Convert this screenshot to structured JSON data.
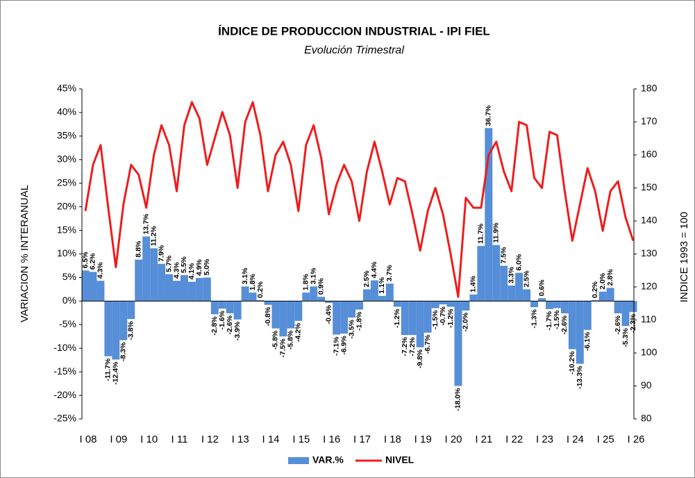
{
  "chart_data": {
    "type": "bar_line",
    "title": "ÍNDICE DE PRODUCCION INDUSTRIAL - IPI FIEL",
    "subtitle": "Evolución Trimestral",
    "y_label": "VARIACION % INTERANUAL",
    "y2_label": "INDICE 1993 = 100",
    "categories": [
      "I 08",
      null,
      null,
      null,
      "I 09",
      null,
      null,
      null,
      "I 10",
      null,
      null,
      null,
      "I 11",
      null,
      null,
      null,
      "I 12",
      null,
      null,
      null,
      "I 13",
      null,
      null,
      null,
      "I 14",
      null,
      null,
      null,
      "I 15",
      null,
      null,
      null,
      "I 16",
      null,
      null,
      null,
      "I 17",
      null,
      null,
      null,
      "I 18",
      null,
      null,
      null,
      "I 19",
      null,
      null,
      null,
      "I 20",
      null,
      null,
      null,
      "I 21",
      null,
      null,
      null,
      "I 22",
      null,
      null,
      null,
      "I 23",
      null,
      null,
      null,
      "I 24",
      null,
      null,
      null,
      "I 25",
      null,
      null,
      null,
      "I 26"
    ],
    "series": [
      {
        "name": "VAR.%",
        "color": "#568ed8",
        "axis": "y",
        "values": [
          6.5,
          6.2,
          4.3,
          -11.7,
          -12.4,
          -8.3,
          -3.8,
          8.8,
          13.7,
          11.2,
          7.9,
          5.7,
          4.3,
          5.5,
          4.1,
          4.9,
          5.0,
          -2.8,
          -1.6,
          -2.6,
          -3.9,
          3.1,
          1.8,
          0.2,
          -0.8,
          -5.8,
          -7.5,
          -5.8,
          -4.2,
          1.8,
          3.1,
          0.9,
          -0.4,
          -7.1,
          -6.9,
          -3.5,
          -1.8,
          2.5,
          4.4,
          1.1,
          3.7,
          -1.2,
          -7.2,
          -7.2,
          -9.8,
          -6.7,
          -1.5,
          -0.7,
          -1.2,
          -18.0,
          -2.0,
          1.4,
          11.7,
          36.7,
          11.9,
          7.5,
          3.3,
          6.0,
          2.5,
          -1.3,
          0.6,
          -1.7,
          -1.5,
          -2.6,
          -10.2,
          -13.3,
          -6.1,
          0.2,
          2.0,
          2.8,
          -2.6,
          -5.3,
          -2.3
        ],
        "value_labels": [
          "6.5%",
          "6.2%",
          "4.3%",
          "-11.7%",
          "-12.4%",
          "-8.3%",
          "-3.8%",
          "8.8%",
          "13.7%",
          "11.2%",
          "7.9%",
          "5.7%",
          "4.3%",
          "5.5%",
          "4.1%",
          "4.9%",
          "5.0%",
          "-2.8%",
          "-1.6%",
          "-2.6%",
          "-3.9%",
          "3.1%",
          "1.8%",
          "0.2%",
          "-0.8%",
          "-5.8%",
          "-7.5%",
          "-5.8%",
          "-4.2%",
          "1.8%",
          "3.1%",
          "0.9%",
          "-0.4%",
          "-7.1%",
          "-6.9%",
          "-3.5%",
          "-1.8%",
          "2.5%",
          "4.4%",
          "1.1%",
          "3.7%",
          "-1.2%",
          "-7.2%",
          "-7.2%",
          "-9.8%",
          "-6.7%",
          "-1.5%",
          "-0.7%",
          "-1.2%",
          "-18.0%",
          "-2.0%",
          "1.4%",
          "11.7%",
          "36.7%",
          "11.9%",
          "7.5%",
          "3.3%",
          "6.0%",
          "2.5%",
          "-1.3%",
          "0.6%",
          "-1.7%",
          "-1.5%",
          "-2.6%",
          "-10.2%",
          "-13.3%",
          "-6.1%",
          "0.2%",
          "2.0%",
          "2.8%",
          "-2.6%",
          "-5.3%",
          "-2.3%"
        ]
      },
      {
        "name": "NIVEL",
        "color": "#ee1c1c",
        "axis": "y2",
        "values": [
          143,
          157,
          163,
          144,
          126,
          145,
          157,
          154,
          144,
          160,
          169,
          163,
          149,
          169,
          176,
          171,
          157,
          165,
          173,
          166,
          150,
          170,
          176,
          166,
          149,
          160,
          164,
          157,
          143,
          163,
          169,
          159,
          142,
          151,
          157,
          152,
          140,
          155,
          164,
          155,
          145,
          153,
          152,
          142,
          131,
          143,
          150,
          142,
          130,
          117,
          147,
          144,
          144,
          160,
          164,
          155,
          149,
          170,
          169,
          153,
          150,
          167,
          166,
          149,
          134,
          145,
          156,
          149,
          137,
          149,
          152,
          141,
          134
        ]
      }
    ],
    "ylim": [
      -25,
      45
    ],
    "yticks": [
      {
        "value": -25,
        "label": "-25%"
      },
      {
        "value": -20,
        "label": "-20%"
      },
      {
        "value": -15,
        "label": "-15%"
      },
      {
        "value": -10,
        "label": "-10%"
      },
      {
        "value": -5,
        "label": "-5%"
      },
      {
        "value": 0,
        "label": "0%"
      },
      {
        "value": 5,
        "label": "5%"
      },
      {
        "value": 10,
        "label": "10%"
      },
      {
        "value": 15,
        "label": "15%"
      },
      {
        "value": 20,
        "label": "20%"
      },
      {
        "value": 25,
        "label": "25%"
      },
      {
        "value": 30,
        "label": "30%"
      },
      {
        "value": 35,
        "label": "35%"
      },
      {
        "value": 40,
        "label": "40%"
      },
      {
        "value": 45,
        "label": "45%"
      }
    ],
    "y2lim": [
      80,
      180
    ],
    "y2ticks": [
      80,
      90,
      100,
      110,
      120,
      130,
      140,
      150,
      160,
      170,
      180
    ],
    "grid": false,
    "legend": "bottom"
  }
}
